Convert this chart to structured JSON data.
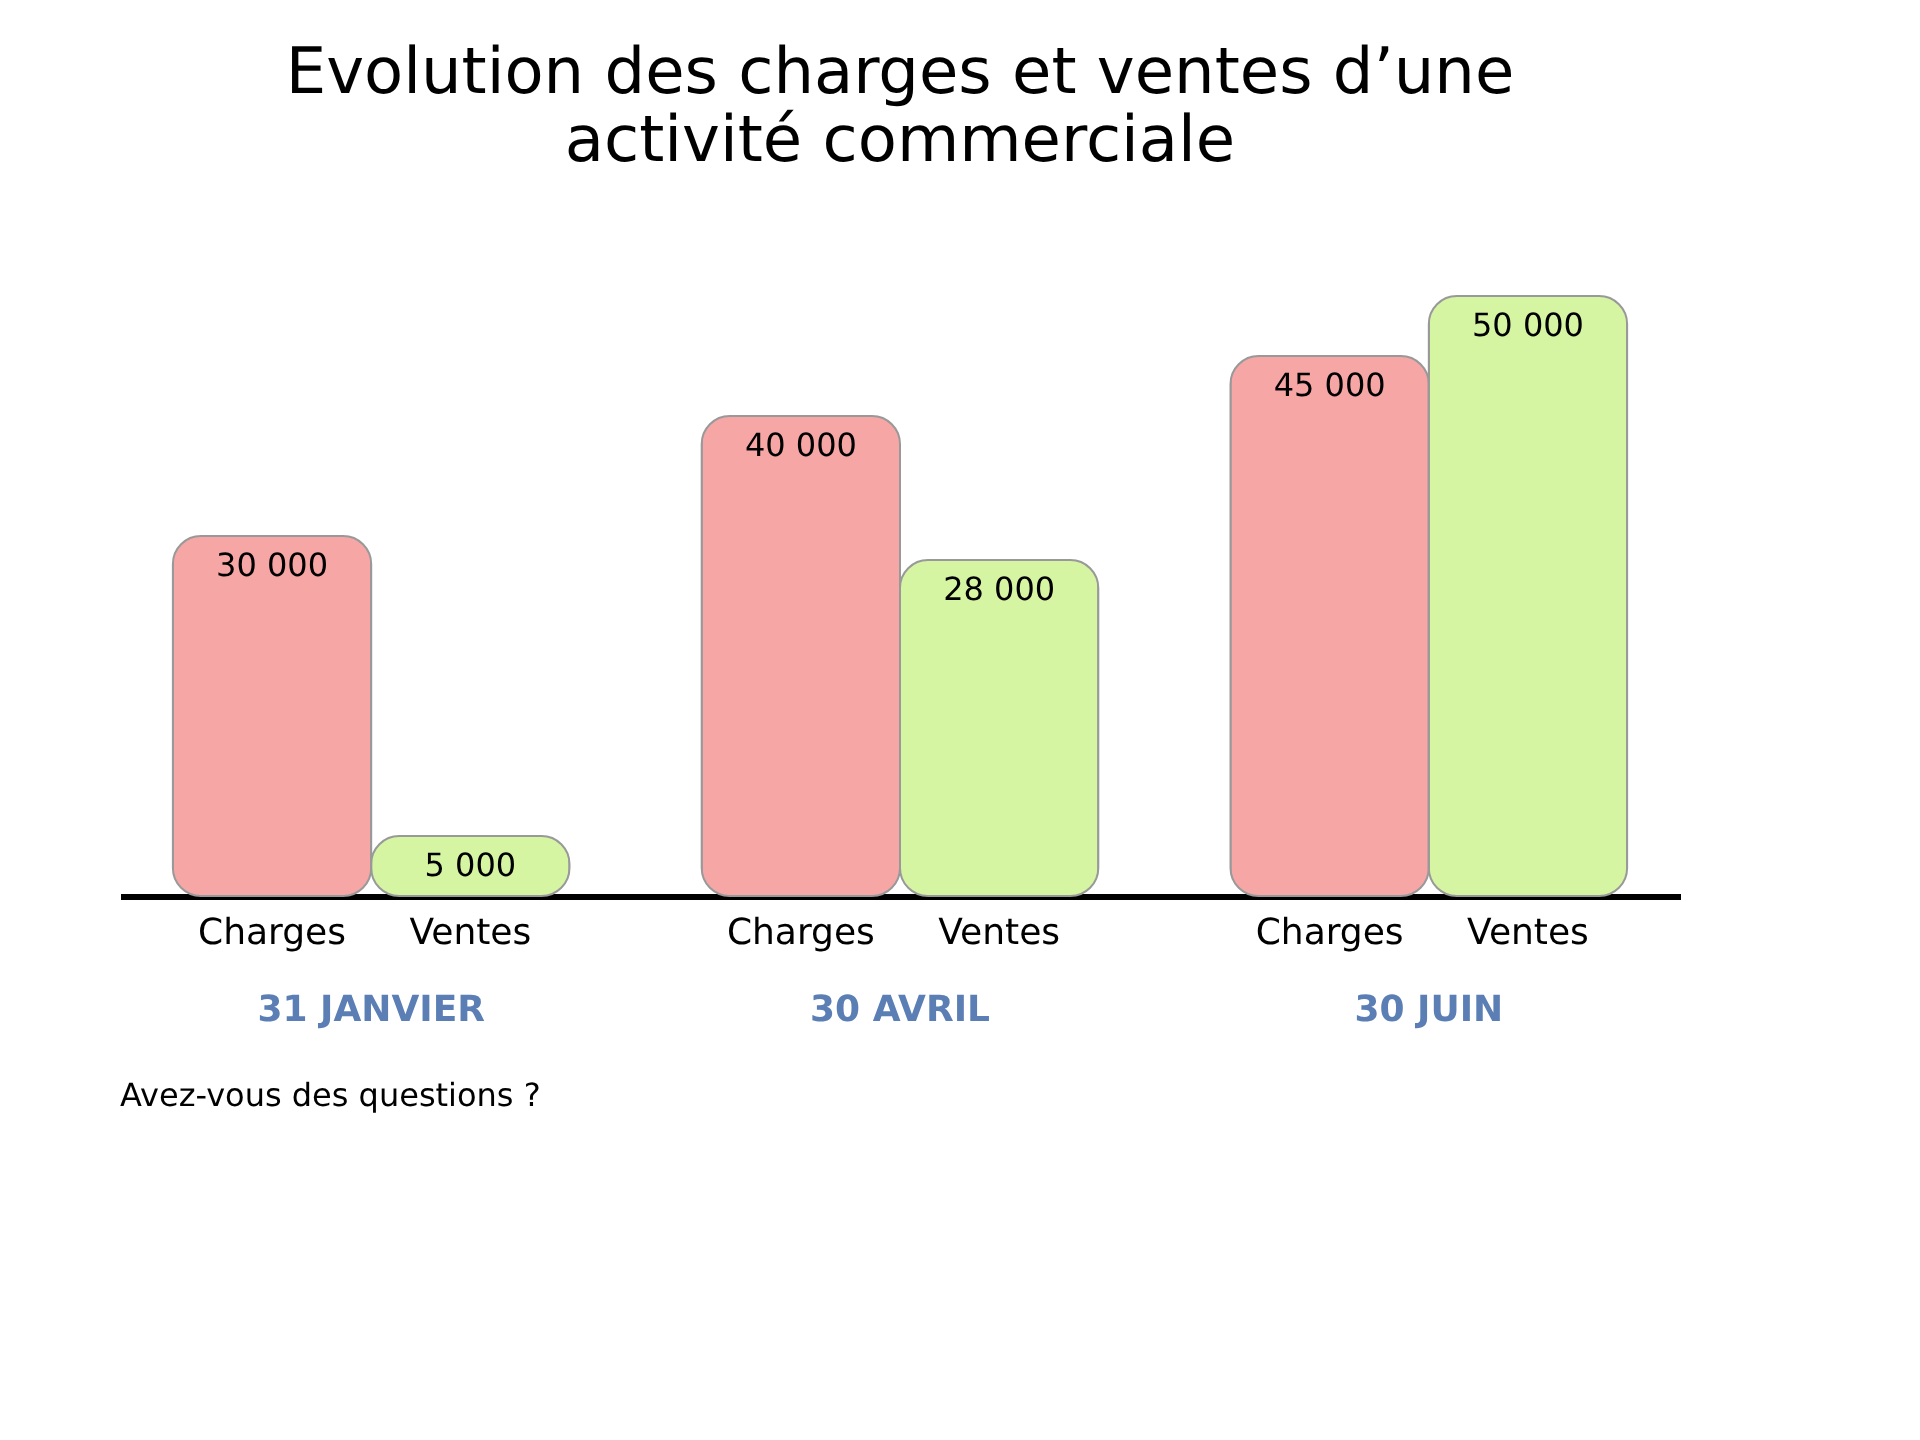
{
  "chart_data": {
    "type": "bar",
    "title": "Evolution des charges et ventes d’une activité commerciale",
    "categories": [
      "31 JANVIER",
      "30 AVRIL",
      "30 JUIN"
    ],
    "series": [
      {
        "name": "Charges",
        "color": "#f7a6a6",
        "values": [
          30000,
          40000,
          45000
        ]
      },
      {
        "name": "Ventes",
        "color": "#d6f5a3",
        "values": [
          5000,
          28000,
          50000
        ]
      }
    ],
    "data_labels": true,
    "legend": false,
    "annotations": [
      "Avez-vous des questions ?"
    ]
  }
}
